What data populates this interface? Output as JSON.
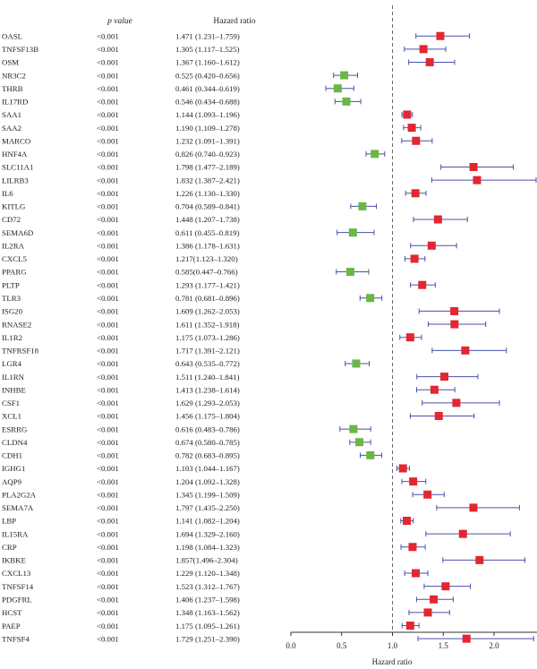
{
  "chart_data": {
    "type": "forest",
    "columns": {
      "p": "p value",
      "hr": "Hazard ratio"
    },
    "xlabel": "Hazard ratio",
    "xlim": [
      0.0,
      2.4
    ],
    "xticks": [
      "0.0",
      "0.5",
      "1.0",
      "1.5",
      "2.0"
    ],
    "reference_line": 1.0,
    "colors": {
      "risk": "#e3262f",
      "protective": "#6ab646",
      "whisker": "#4a50a8",
      "reference": "#666666"
    },
    "rows": [
      {
        "gene": "OASL",
        "p": "<0.001",
        "hr_text": "1.471 (1.231–1.759)",
        "hr": 1.471,
        "lo": 1.231,
        "hi": 1.759
      },
      {
        "gene": "TNFSF13B",
        "p": "<0.001",
        "hr_text": "1.305 (1.117–1.525)",
        "hr": 1.305,
        "lo": 1.117,
        "hi": 1.525
      },
      {
        "gene": "OSM",
        "p": "<0.001",
        "hr_text": "1.367 (1.160–1.612)",
        "hr": 1.367,
        "lo": 1.16,
        "hi": 1.612
      },
      {
        "gene": "NR3C2",
        "p": "<0.001",
        "hr_text": "0.525 (0.420–0.656)",
        "hr": 0.525,
        "lo": 0.42,
        "hi": 0.656
      },
      {
        "gene": "THRB",
        "p": "<0.001",
        "hr_text": "0.461 (0.344–0.619)",
        "hr": 0.461,
        "lo": 0.344,
        "hi": 0.619
      },
      {
        "gene": "IL17RD",
        "p": "<0.001",
        "hr_text": "0.546 (0.434–0.688)",
        "hr": 0.546,
        "lo": 0.434,
        "hi": 0.688
      },
      {
        "gene": "SAA1",
        "p": "<0.001",
        "hr_text": "1.144 (1.093–1.196)",
        "hr": 1.144,
        "lo": 1.093,
        "hi": 1.196
      },
      {
        "gene": "SAA2",
        "p": "<0.001",
        "hr_text": "1.190 (1.109–1.278)",
        "hr": 1.19,
        "lo": 1.109,
        "hi": 1.278
      },
      {
        "gene": "MARCO",
        "p": "<0.001",
        "hr_text": "1.232 (1.091–1.391)",
        "hr": 1.232,
        "lo": 1.091,
        "hi": 1.391
      },
      {
        "gene": "HNF4A",
        "p": "<0.001",
        "hr_text": "0.826 (0.740–0.923)",
        "hr": 0.826,
        "lo": 0.74,
        "hi": 0.923
      },
      {
        "gene": "SLC11A1",
        "p": "<0.001",
        "hr_text": "1.798 (1.477–2.189)",
        "hr": 1.798,
        "lo": 1.477,
        "hi": 2.189
      },
      {
        "gene": "LILRB3",
        "p": "<0.001",
        "hr_text": "1.832 (1.387–2.421)",
        "hr": 1.832,
        "lo": 1.387,
        "hi": 2.421
      },
      {
        "gene": "IL6",
        "p": "<0.001",
        "hr_text": "1.226 (1.130–1.330)",
        "hr": 1.226,
        "lo": 1.13,
        "hi": 1.33
      },
      {
        "gene": "KITLG",
        "p": "<0.001",
        "hr_text": "0.704 (0.589–0.841)",
        "hr": 0.704,
        "lo": 0.589,
        "hi": 0.841
      },
      {
        "gene": "CD72",
        "p": "<0.001",
        "hr_text": "1.448 (1.207–1.738)",
        "hr": 1.448,
        "lo": 1.207,
        "hi": 1.738
      },
      {
        "gene": "SEMA6D",
        "p": "<0.001",
        "hr_text": "0.611 (0.455–0.819)",
        "hr": 0.611,
        "lo": 0.455,
        "hi": 0.819
      },
      {
        "gene": "IL2RA",
        "p": "<0.001",
        "hr_text": "1.386 (1.178–1.631)",
        "hr": 1.386,
        "lo": 1.178,
        "hi": 1.631
      },
      {
        "gene": "CXCL5",
        "p": "<0.001",
        "hr_text": "1.217(1.123–1.320)",
        "hr": 1.217,
        "lo": 1.123,
        "hi": 1.32
      },
      {
        "gene": "PPARG",
        "p": "<0.001",
        "hr_text": "0.585(0.447–0.766)",
        "hr": 0.585,
        "lo": 0.447,
        "hi": 0.766
      },
      {
        "gene": "PLTP",
        "p": "<0.001",
        "hr_text": "1.293 (1.177–1.421)",
        "hr": 1.293,
        "lo": 1.177,
        "hi": 1.421
      },
      {
        "gene": "TLR3",
        "p": "<0.001",
        "hr_text": "0.781 (0.681–0.896)",
        "hr": 0.781,
        "lo": 0.681,
        "hi": 0.896
      },
      {
        "gene": "ISG20",
        "p": "<0.001",
        "hr_text": "1.609 (1.262–2.053)",
        "hr": 1.609,
        "lo": 1.262,
        "hi": 2.053
      },
      {
        "gene": "RNASE2",
        "p": "<0.001",
        "hr_text": "1.611 (1.352–1.918)",
        "hr": 1.611,
        "lo": 1.352,
        "hi": 1.918
      },
      {
        "gene": "IL1R2",
        "p": "<0.001",
        "hr_text": "1.175 (1.073–1.286)",
        "hr": 1.175,
        "lo": 1.073,
        "hi": 1.286
      },
      {
        "gene": "TNFRSF18",
        "p": "<0.001",
        "hr_text": "1.717 (1.391–2.121)",
        "hr": 1.717,
        "lo": 1.391,
        "hi": 2.121
      },
      {
        "gene": "LGR4",
        "p": "<0.001",
        "hr_text": "0.643 (0.535–0.772)",
        "hr": 0.643,
        "lo": 0.535,
        "hi": 0.772
      },
      {
        "gene": "IL1RN",
        "p": "<0.001",
        "hr_text": "1.511 (1.240–1.841)",
        "hr": 1.511,
        "lo": 1.24,
        "hi": 1.841
      },
      {
        "gene": "INHBE",
        "p": "<0.001",
        "hr_text": "1.413 (1.238–1.614)",
        "hr": 1.413,
        "lo": 1.238,
        "hi": 1.614
      },
      {
        "gene": "CSF1",
        "p": "<0.001",
        "hr_text": "1.629 (1.293–2.053)",
        "hr": 1.629,
        "lo": 1.293,
        "hi": 2.053
      },
      {
        "gene": "XCL1",
        "p": "<0.001",
        "hr_text": "1.456 (1.175–1.804)",
        "hr": 1.456,
        "lo": 1.175,
        "hi": 1.804
      },
      {
        "gene": "ESRRG",
        "p": "<0.001",
        "hr_text": "0.616 (0.483–0.786)",
        "hr": 0.616,
        "lo": 0.483,
        "hi": 0.786
      },
      {
        "gene": "CLDN4",
        "p": "<0.001",
        "hr_text": "0.674 (0.580–0.785)",
        "hr": 0.674,
        "lo": 0.58,
        "hi": 0.785
      },
      {
        "gene": "CDH1",
        "p": "<0.001",
        "hr_text": "0.782 (0.683–0.895)",
        "hr": 0.782,
        "lo": 0.683,
        "hi": 0.895
      },
      {
        "gene": "IGHG1",
        "p": "<0.001",
        "hr_text": "1.103 (1.044–1.167)",
        "hr": 1.103,
        "lo": 1.044,
        "hi": 1.167
      },
      {
        "gene": "AQP9",
        "p": "<0.001",
        "hr_text": "1.204 (1.092–1.328)",
        "hr": 1.204,
        "lo": 1.092,
        "hi": 1.328
      },
      {
        "gene": "PLA2G2A",
        "p": "<0.001",
        "hr_text": "1.345 (1.199–1.509)",
        "hr": 1.345,
        "lo": 1.199,
        "hi": 1.509
      },
      {
        "gene": "SEMA7A",
        "p": "<0.001",
        "hr_text": "1.797 (1.435–2.250)",
        "hr": 1.797,
        "lo": 1.435,
        "hi": 2.25
      },
      {
        "gene": "LBP",
        "p": "<0.001",
        "hr_text": "1.141 (1.082–1.204)",
        "hr": 1.141,
        "lo": 1.082,
        "hi": 1.204
      },
      {
        "gene": "IL15RA",
        "p": "<0.001",
        "hr_text": "1.694 (1.329–2.160)",
        "hr": 1.694,
        "lo": 1.329,
        "hi": 2.16
      },
      {
        "gene": "CRP",
        "p": "<0.001",
        "hr_text": "1.198 (1.084–1.323)",
        "hr": 1.198,
        "lo": 1.084,
        "hi": 1.323
      },
      {
        "gene": "IKBKE",
        "p": "<0.001",
        "hr_text": "1.857(1.496–2.304)",
        "hr": 1.857,
        "lo": 1.496,
        "hi": 2.304
      },
      {
        "gene": "CXCL13",
        "p": "<0.001",
        "hr_text": "1.229 (1.120–1.348)",
        "hr": 1.229,
        "lo": 1.12,
        "hi": 1.348
      },
      {
        "gene": "TNFSF14",
        "p": "<0.001",
        "hr_text": "1.523 (1.312–1.767)",
        "hr": 1.523,
        "lo": 1.312,
        "hi": 1.767
      },
      {
        "gene": "PDGFRL",
        "p": "<0.001",
        "hr_text": "1.406 (1.237–1.598)",
        "hr": 1.406,
        "lo": 1.237,
        "hi": 1.598
      },
      {
        "gene": "HCST",
        "p": "<0.001",
        "hr_text": "1.348 (1.163–1.562)",
        "hr": 1.348,
        "lo": 1.163,
        "hi": 1.562
      },
      {
        "gene": "PAEP",
        "p": "<0.001",
        "hr_text": "1.175 (1.095–1.261)",
        "hr": 1.175,
        "lo": 1.095,
        "hi": 1.261
      },
      {
        "gene": "TNFSF4",
        "p": "<0.001",
        "hr_text": "1.729 (1.251–2.390)",
        "hr": 1.729,
        "lo": 1.251,
        "hi": 2.39
      }
    ]
  }
}
